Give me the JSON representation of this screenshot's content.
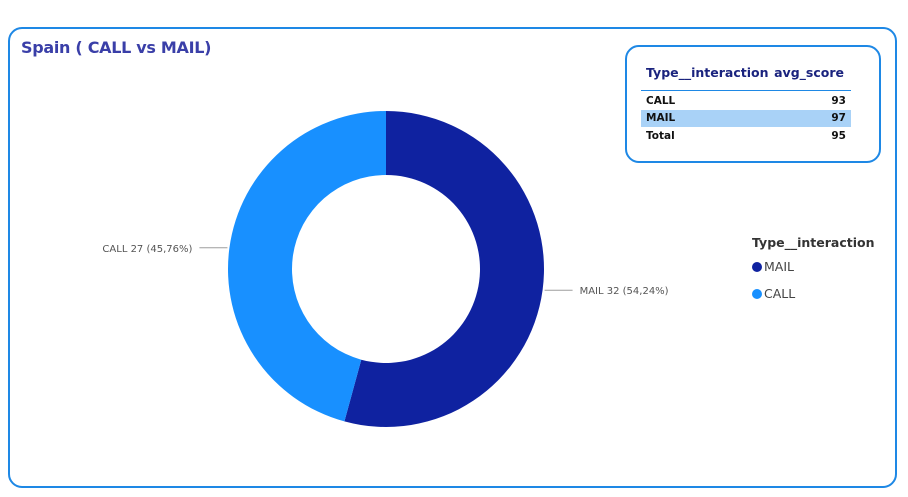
{
  "title": "Spain ( CALL vs MAIL)",
  "colors": {
    "mail": "#0f22a0",
    "call": "#1890ff",
    "border": "#1e88e5",
    "title": "#3a3fa8"
  },
  "table": {
    "headers": [
      "Type__interaction",
      "avg_score"
    ],
    "rows": [
      {
        "type": "CALL",
        "score": "93"
      },
      {
        "type": "MAIL",
        "score": "97"
      },
      {
        "type": "Total",
        "score": "95"
      }
    ]
  },
  "legend": {
    "title": "Type__interaction",
    "items": [
      "MAIL",
      "CALL"
    ]
  },
  "chart_data": {
    "type": "pie",
    "donut": true,
    "categories": [
      "MAIL",
      "CALL"
    ],
    "values": [
      32,
      27
    ],
    "percent_labels": [
      "MAIL 32 (54,24%)",
      "CALL 27 (45,76%)"
    ]
  }
}
